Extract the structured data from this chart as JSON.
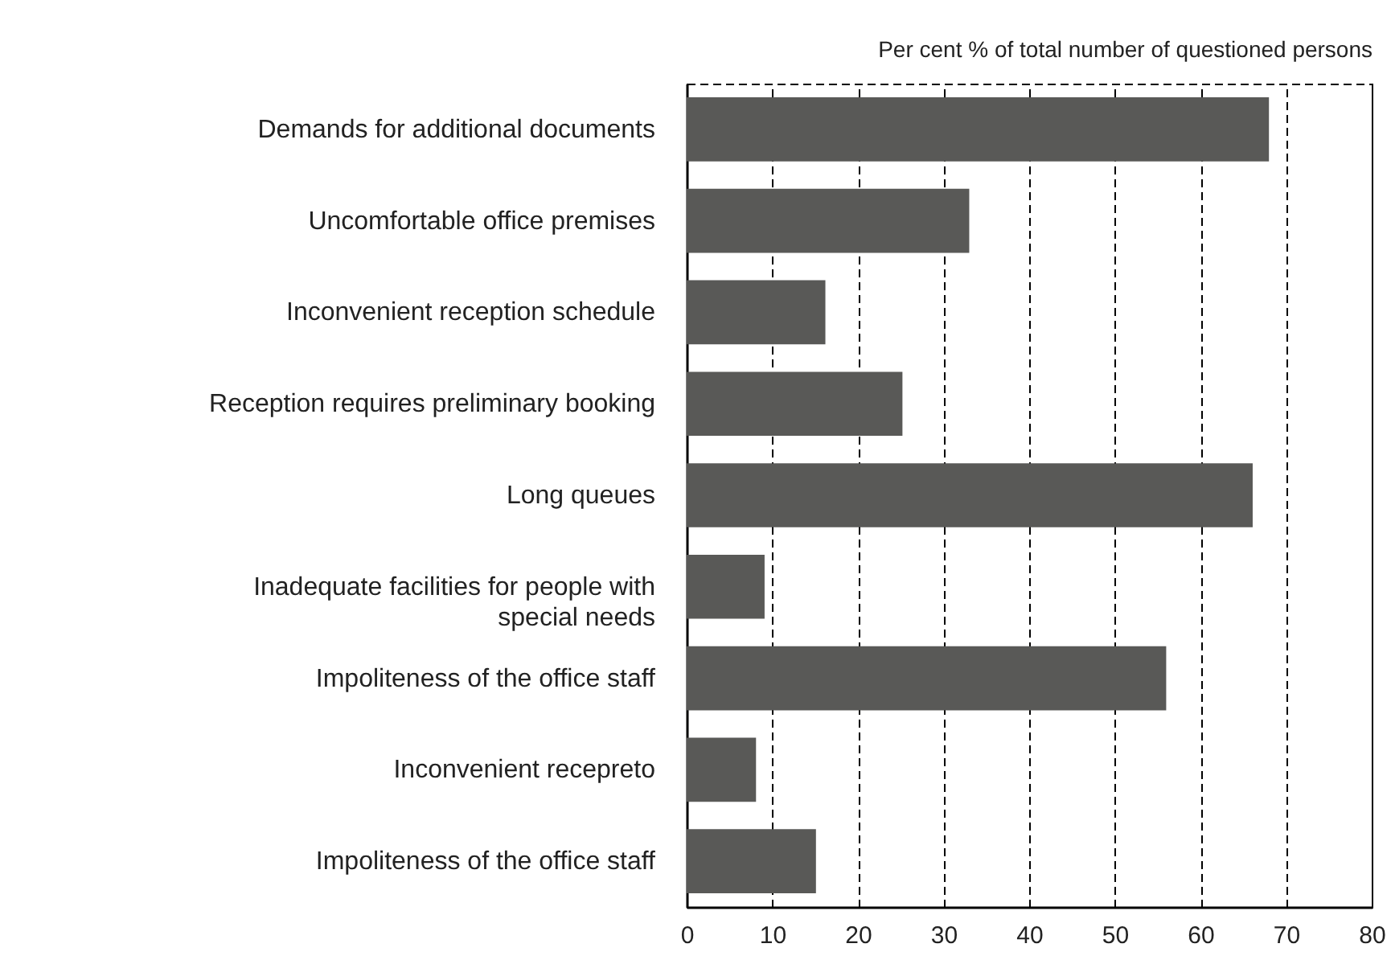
{
  "chart_data": {
    "type": "bar",
    "orientation": "horizontal",
    "xlabel": "Per cent % of total number of questioned persons",
    "categories": [
      "Demands for additional documents",
      "Uncomfortable office premises",
      "Inconvenient reception schedule",
      "Reception requires preliminary booking",
      "Long queues",
      "Inadequate facilities for people with special needs",
      "Impoliteness of the office staff",
      "Inconvenient recepreto",
      "Impoliteness of the office staff"
    ],
    "values": [
      68,
      33,
      16.2,
      25.2,
      66.1,
      9.1,
      56,
      8.1,
      15.1
    ],
    "color": "#595957",
    "xlim": [
      0,
      80
    ],
    "xticks": [
      0,
      10,
      20,
      30,
      40,
      50,
      60,
      70,
      80
    ],
    "grid": "x"
  }
}
